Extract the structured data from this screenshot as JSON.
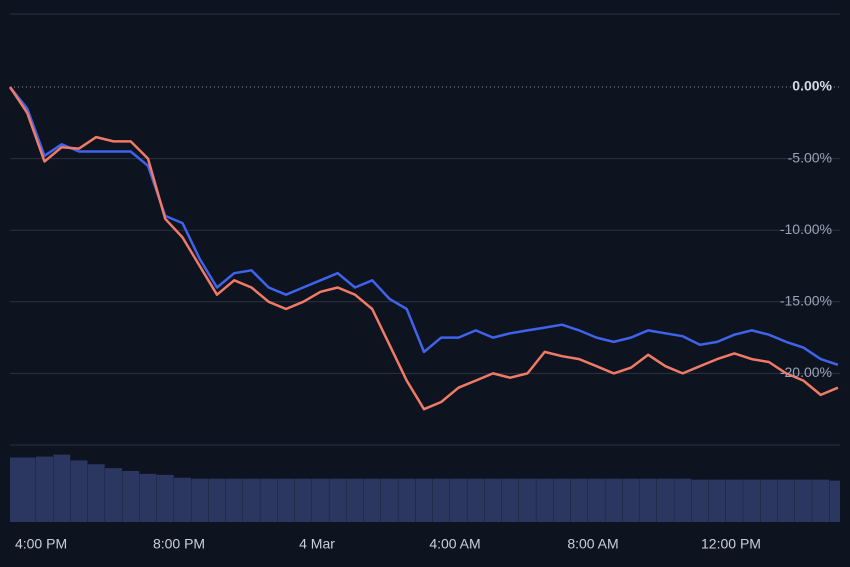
{
  "chart_data": {
    "type": "line",
    "x": [
      15.1,
      15.6,
      16.1,
      16.6,
      17.1,
      17.6,
      18.1,
      18.6,
      19.1,
      19.6,
      20.1,
      20.6,
      21.1,
      21.6,
      22.1,
      22.6,
      23.1,
      23.6,
      24.1,
      24.6,
      25.1,
      25.6,
      26.1,
      26.6,
      27.1,
      27.6,
      28.1,
      28.6,
      29.1,
      29.6,
      30.1,
      30.6,
      31.1,
      31.6,
      32.1,
      32.6,
      33.1,
      33.6,
      34.1,
      34.6,
      35.1,
      35.6,
      36.1,
      36.6,
      37.1,
      37.6,
      38.1,
      38.6,
      39.1
    ],
    "series": [
      {
        "color": "#3f63ea",
        "values": [
          0,
          -1.5,
          -4.8,
          -4.0,
          -4.5,
          -4.5,
          -4.5,
          -4.5,
          -5.5,
          -9.0,
          -9.5,
          -12.0,
          -14.0,
          -13.0,
          -12.8,
          -14.0,
          -14.5,
          -14.0,
          -13.5,
          -13.0,
          -14.0,
          -13.5,
          -14.8,
          -15.5,
          -18.5,
          -17.5,
          -17.5,
          -17.0,
          -17.5,
          -17.2,
          -17.0,
          -16.8,
          -16.6,
          -17.0,
          -17.5,
          -17.8,
          -17.5,
          -17.0,
          -17.2,
          -17.4,
          -18.0,
          -17.8,
          -17.3,
          -17.0,
          -17.3,
          -17.8,
          -18.2,
          -19.0,
          -19.4
        ]
      },
      {
        "color": "#f07a66",
        "values": [
          0,
          -1.8,
          -5.2,
          -4.2,
          -4.3,
          -3.5,
          -3.8,
          -3.8,
          -5.0,
          -9.2,
          -10.5,
          -12.5,
          -14.5,
          -13.5,
          -14.0,
          -15.0,
          -15.5,
          -15.0,
          -14.3,
          -14.0,
          -14.5,
          -15.5,
          -18.0,
          -20.5,
          -22.5,
          -22.0,
          -21.0,
          -20.5,
          -20.0,
          -20.3,
          -20.0,
          -18.5,
          -18.8,
          -19.0,
          -19.5,
          -20.0,
          -19.6,
          -18.7,
          -19.5,
          -20.0,
          -19.5,
          -19.0,
          -18.6,
          -19.0,
          -19.2,
          -20.0,
          -20.5,
          -21.5,
          -21.0
        ]
      }
    ],
    "volume": {
      "color": "#2b3760",
      "ylim": [
        0,
        80
      ],
      "values": [
        67,
        67,
        68,
        70,
        64,
        60,
        56,
        53,
        50,
        49,
        46,
        45,
        45,
        45,
        45,
        45,
        45,
        45,
        45,
        45,
        45,
        45,
        45,
        45,
        45,
        45,
        45,
        45,
        45,
        45,
        45,
        45,
        45,
        45,
        45,
        45,
        45,
        45,
        45,
        45,
        44,
        44,
        44,
        44,
        44,
        44,
        44,
        44,
        43
      ]
    },
    "xlim": [
      15.1,
      39.16
    ],
    "xticks": [
      {
        "value": 16,
        "label": "4:00 PM"
      },
      {
        "value": 20,
        "label": "8:00 PM"
      },
      {
        "value": 24,
        "label": "4 Mar"
      },
      {
        "value": 28,
        "label": "4:00 AM"
      },
      {
        "value": 32,
        "label": "8:00 AM"
      },
      {
        "value": 36,
        "label": "12:00 PM"
      }
    ],
    "ylim": [
      -25,
      5.1
    ],
    "yticks": [
      {
        "value": 0,
        "label": "0.00%"
      },
      {
        "value": -5,
        "label": "-5.00%"
      },
      {
        "value": -10,
        "label": "-10.00%"
      },
      {
        "value": -15,
        "label": "-15.00%"
      },
      {
        "value": -20,
        "label": "-20.00%"
      }
    ],
    "grid": true
  }
}
